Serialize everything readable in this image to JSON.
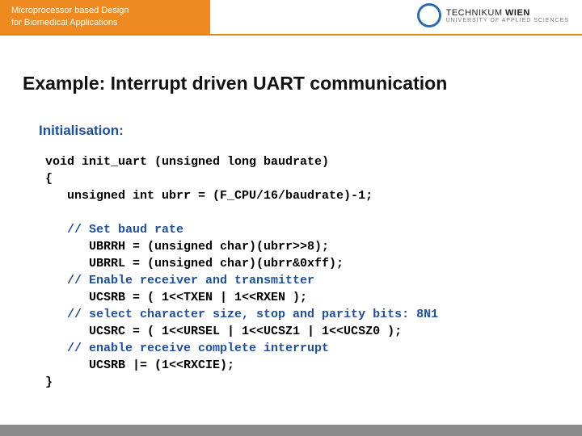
{
  "header": {
    "line1": "Microprocessor based Design",
    "line2": "for Biomedical Applications",
    "bg_color": "#ee8a1f",
    "underline_color": "#e68517"
  },
  "logo": {
    "brand": "TECHNIKUM",
    "city": "WIEN",
    "tagline": "UNIVERSITY OF APPLIED SCIENCES"
  },
  "title": "Example: Interrupt driven UART communication",
  "subheading": {
    "text": "Initialisation:",
    "color": "#1d4fa0"
  },
  "code": {
    "comment_color": "#1d4fa0",
    "lines": [
      {
        "t": "void init_uart (unsigned long baudrate)"
      },
      {
        "t": "{"
      },
      {
        "t": "   unsigned int ubrr = (F_CPU/16/baudrate)-1;"
      },
      {
        "t": ""
      },
      {
        "t": "   // Set baud rate",
        "c": true
      },
      {
        "t": "      UBRRH = (unsigned char)(ubrr>>8);"
      },
      {
        "t": "      UBRRL = (unsigned char)(ubrr&0xff);"
      },
      {
        "t": "   // Enable receiver and transmitter",
        "c": true
      },
      {
        "t": "      UCSRB = ( 1<<TXEN | 1<<RXEN );"
      },
      {
        "t": "   // select character size, stop and parity bits: 8N1",
        "c": true
      },
      {
        "t": "      UCSRC = ( 1<<URSEL | 1<<UCSZ1 | 1<<UCSZ0 );"
      },
      {
        "t": "   // enable receive complete interrupt",
        "c": true
      },
      {
        "t": "      UCSRB |= (1<<RXCIE);"
      },
      {
        "t": "}"
      }
    ]
  }
}
